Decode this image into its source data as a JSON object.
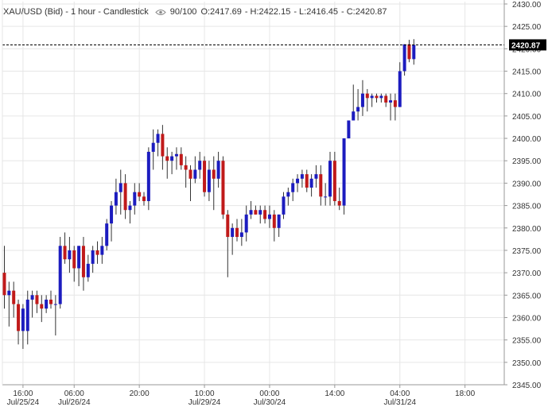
{
  "header": {
    "symbol": "XAU/USD (Bid) - 1 hour - Candlestick",
    "eye_icon": "eye-icon",
    "quality": "90/100",
    "ohlc": {
      "open": "O:2417.69",
      "high": "H:2422.15",
      "low": "L:2416.45",
      "close": "C:2420.87"
    }
  },
  "price_tag": "2420.87",
  "colors": {
    "up": "#1c1cbf",
    "down": "#c01a1a",
    "grid": "#e6e6e6",
    "axis": "#999999",
    "text": "#333333",
    "tag_bg": "#000000",
    "tag_text": "#ffffff"
  },
  "chart_data": {
    "type": "candlestick",
    "title": "XAU/USD (Bid) - 1 hour - Candlestick",
    "ylim": [
      2345,
      2430
    ],
    "y_ticks": [
      2345,
      2350,
      2355,
      2360,
      2365,
      2370,
      2375,
      2380,
      2385,
      2390,
      2395,
      2400,
      2405,
      2410,
      2415,
      2420,
      2425,
      2430
    ],
    "last_price": 2420.87,
    "x_ticks": [
      {
        "index": 4,
        "time": "16:00",
        "date": "Jul/25/24"
      },
      {
        "index": 15,
        "time": "06:00",
        "date": "Jul/26/24"
      },
      {
        "index": 29,
        "time": "20:00",
        "date": ""
      },
      {
        "index": 43,
        "time": "10:00",
        "date": "Jul/29/24"
      },
      {
        "index": 57,
        "time": "00:00",
        "date": "Jul/30/24"
      },
      {
        "index": 71,
        "time": "14:00",
        "date": ""
      },
      {
        "index": 85,
        "time": "04:00",
        "date": "Jul/31/24"
      },
      {
        "index": 99,
        "time": "18:00",
        "date": ""
      }
    ],
    "candles": [
      [
        2370.0,
        2376.0,
        2362.0,
        2365.0
      ],
      [
        2365.0,
        2368.0,
        2358.0,
        2366.0
      ],
      [
        2366.0,
        2368.0,
        2360.0,
        2363.0
      ],
      [
        2363.0,
        2364.0,
        2354.0,
        2357.0
      ],
      [
        2357.0,
        2363.0,
        2353.0,
        2362.0
      ],
      [
        2357.0,
        2366.0,
        2354.0,
        2364.0
      ],
      [
        2364.0,
        2366.0,
        2360.0,
        2365.0
      ],
      [
        2365.0,
        2366.0,
        2361.0,
        2363.0
      ],
      [
        2363.0,
        2365.0,
        2359.0,
        2362.0
      ],
      [
        2362.0,
        2365.0,
        2361.0,
        2364.0
      ],
      [
        2364.0,
        2366.0,
        2362.0,
        2363.0
      ],
      [
        2363.0,
        2365.0,
        2356.0,
        2363.0
      ],
      [
        2363.0,
        2378.0,
        2362.0,
        2376.0
      ],
      [
        2376.0,
        2379.0,
        2372.0,
        2373.0
      ],
      [
        2373.0,
        2378.0,
        2370.0,
        2375.0
      ],
      [
        2375.0,
        2376.0,
        2368.0,
        2371.0
      ],
      [
        2371.0,
        2376.0,
        2367.0,
        2376.0
      ],
      [
        2376.0,
        2378.0,
        2366.0,
        2369.0
      ],
      [
        2369.0,
        2374.0,
        2368.0,
        2372.0
      ],
      [
        2372.0,
        2376.0,
        2370.0,
        2375.0
      ],
      [
        2375.0,
        2377.0,
        2372.0,
        2374.0
      ],
      [
        2374.0,
        2378.0,
        2372.0,
        2376.0
      ],
      [
        2376.0,
        2382.0,
        2375.0,
        2381.0
      ],
      [
        2381.0,
        2386.0,
        2377.0,
        2385.0
      ],
      [
        2385.0,
        2391.0,
        2383.0,
        2388.0
      ],
      [
        2388.0,
        2393.0,
        2383.0,
        2390.0
      ],
      [
        2390.0,
        2392.0,
        2382.0,
        2384.0
      ],
      [
        2384.0,
        2386.0,
        2381.0,
        2385.0
      ],
      [
        2385.0,
        2390.0,
        2383.0,
        2388.0
      ],
      [
        2388.0,
        2390.0,
        2386.0,
        2387.0
      ],
      [
        2387.0,
        2388.0,
        2385.0,
        2386.0
      ],
      [
        2386.0,
        2398.0,
        2384.0,
        2397.0
      ],
      [
        2397.0,
        2402.0,
        2393.0,
        2399.0
      ],
      [
        2399.0,
        2402.0,
        2396.0,
        2401.0
      ],
      [
        2401.0,
        2403.0,
        2393.0,
        2396.0
      ],
      [
        2396.0,
        2398.0,
        2391.0,
        2395.0
      ],
      [
        2395.0,
        2397.0,
        2392.0,
        2396.0
      ],
      [
        2396.0,
        2398.0,
        2393.0,
        2396.5
      ],
      [
        2396.5,
        2398.0,
        2393.0,
        2394.0
      ],
      [
        2394.0,
        2396.0,
        2389.0,
        2393.0
      ],
      [
        2393.0,
        2394.0,
        2386.0,
        2391.0
      ],
      [
        2391.0,
        2396.0,
        2390.0,
        2393.0
      ],
      [
        2393.0,
        2397.0,
        2391.0,
        2395.0
      ],
      [
        2395.0,
        2396.0,
        2387.0,
        2388.0
      ],
      [
        2388.0,
        2395.0,
        2386.0,
        2393.0
      ],
      [
        2393.0,
        2396.0,
        2384.0,
        2391.0
      ],
      [
        2391.0,
        2397.0,
        2389.0,
        2395.0
      ],
      [
        2395.0,
        2396.0,
        2382.0,
        2383.0
      ],
      [
        2383.0,
        2384.0,
        2369.0,
        2378.0
      ],
      [
        2378.0,
        2381.0,
        2374.0,
        2380.0
      ],
      [
        2380.0,
        2382.0,
        2377.0,
        2378.0
      ],
      [
        2378.0,
        2382.0,
        2376.0,
        2379.0
      ],
      [
        2379.0,
        2385.0,
        2377.0,
        2383.0
      ],
      [
        2383.0,
        2386.0,
        2382.0,
        2384.0
      ],
      [
        2384.0,
        2385.0,
        2383.0,
        2383.0
      ],
      [
        2383.0,
        2385.0,
        2381.0,
        2384.0
      ],
      [
        2384.0,
        2385.0,
        2381.0,
        2382.0
      ],
      [
        2382.0,
        2385.0,
        2380.0,
        2383.0
      ],
      [
        2383.0,
        2384.0,
        2377.0,
        2380.0
      ],
      [
        2380.0,
        2383.0,
        2378.0,
        2383.0
      ],
      [
        2383.0,
        2388.0,
        2382.0,
        2387.0
      ],
      [
        2387.0,
        2389.0,
        2385.0,
        2388.0
      ],
      [
        2388.0,
        2391.0,
        2386.0,
        2390.0
      ],
      [
        2390.0,
        2392.0,
        2388.0,
        2391.0
      ],
      [
        2391.0,
        2393.0,
        2389.0,
        2392.0
      ],
      [
        2392.0,
        2393.0,
        2388.0,
        2389.0
      ],
      [
        2389.0,
        2392.0,
        2387.0,
        2391.0
      ],
      [
        2391.0,
        2394.0,
        2389.0,
        2392.0
      ],
      [
        2392.0,
        2394.0,
        2385.0,
        2387.0
      ],
      [
        2387.0,
        2390.0,
        2385.0,
        2387.0
      ],
      [
        2387.0,
        2397.0,
        2385.0,
        2395.0
      ],
      [
        2395.0,
        2397.0,
        2385.0,
        2386.0
      ],
      [
        2386.0,
        2389.0,
        2384.0,
        2385.0
      ],
      [
        2385.0,
        2400.0,
        2383.0,
        2400.0
      ],
      [
        2400.0,
        2404.0,
        2400.0,
        2404.0
      ],
      [
        2404.0,
        2412.0,
        2404.0,
        2406.0
      ],
      [
        2406.0,
        2411.0,
        2404.0,
        2407.0
      ],
      [
        2407.0,
        2413.0,
        2405.0,
        2410.0
      ],
      [
        2410.0,
        2411.0,
        2406.0,
        2409.0
      ],
      [
        2409.0,
        2410.0,
        2407.0,
        2409.5
      ],
      [
        2409.5,
        2410.0,
        2408.0,
        2409.0
      ],
      [
        2409.0,
        2410.0,
        2408.0,
        2409.5
      ],
      [
        2409.5,
        2410.0,
        2407.0,
        2408.0
      ],
      [
        2408.0,
        2410.0,
        2404.0,
        2408.5
      ],
      [
        2408.5,
        2410.0,
        2404.0,
        2407.0
      ],
      [
        2407.0,
        2417.0,
        2407.0,
        2415.0
      ],
      [
        2415.0,
        2421.0,
        2414.0,
        2421.0
      ],
      [
        2421.0,
        2422.0,
        2417.0,
        2417.69
      ],
      [
        2417.69,
        2422.15,
        2416.45,
        2420.87
      ]
    ]
  }
}
